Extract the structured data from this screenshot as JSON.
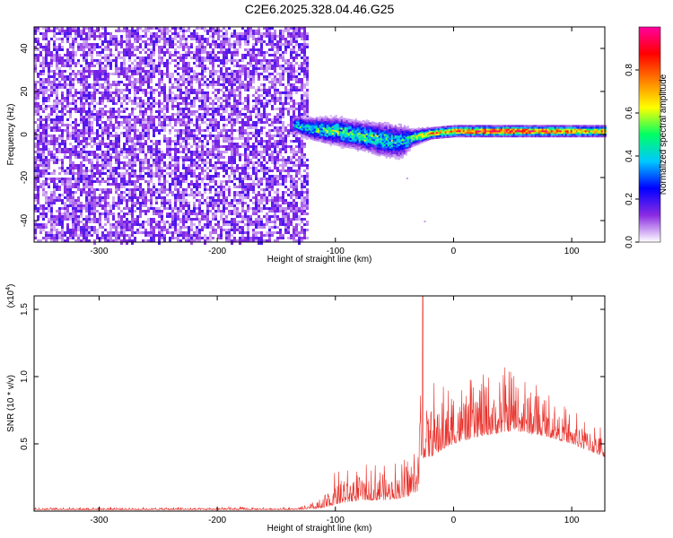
{
  "title": "C2E6.2025.328.04.46.G25",
  "chart_data": [
    {
      "type": "heatmap",
      "xlabel": "Height of straight line (km)",
      "ylabel": "Frequency (Hz)",
      "xlim": [
        -355,
        128
      ],
      "ylim": [
        -50,
        50
      ],
      "x_ticks": [
        -300,
        -200,
        -100,
        0,
        100
      ],
      "x_tick_labels": [
        "-300",
        "-200",
        "-100",
        "0",
        "100"
      ],
      "y_ticks": [
        -40,
        -20,
        0,
        20,
        40
      ],
      "y_tick_labels": [
        "-40",
        "-20",
        "0",
        "20",
        "40"
      ],
      "colorbar": {
        "label": "Normalized spectral amplitude",
        "range": [
          0,
          1
        ],
        "ticks": [
          0,
          0.2,
          0.4,
          0.6,
          0.8
        ],
        "tick_labels": [
          "0.0",
          "0.2",
          "0.4",
          "0.6",
          "0.8"
        ],
        "colormap": [
          "#ffffff",
          "#8a2be2",
          "#0000ff",
          "#00c8ff",
          "#00ff64",
          "#ffff00",
          "#ff8000",
          "#ff0000",
          "#ff00a0"
        ]
      },
      "regions": [
        {
          "x_range": [
            -355,
            -123
          ],
          "freq_range": [
            -50,
            50
          ],
          "amplitude": 0.15,
          "description_label": ""
        },
        {
          "x_range": [
            -135,
            -35
          ],
          "freq_range": [
            -10,
            8
          ],
          "amplitude": 0.45
        },
        {
          "x_range": [
            -35,
            128
          ],
          "freq_range": [
            -1,
            5
          ],
          "amplitude": 0.75
        }
      ],
      "trace": {
        "x": [
          -135,
          -120,
          -100,
          -80,
          -60,
          -45,
          -35,
          -20,
          0,
          20,
          50,
          80,
          110,
          128
        ],
        "center_freq": [
          5,
          3,
          2,
          0,
          -2,
          -3,
          -1,
          1,
          2,
          2,
          2,
          2,
          2,
          2
        ],
        "half_width": [
          3,
          4,
          5,
          5,
          6,
          6,
          3,
          2,
          2,
          2,
          2,
          2,
          2,
          2
        ],
        "peak_amp": [
          0.4,
          0.45,
          0.5,
          0.5,
          0.45,
          0.4,
          0.55,
          0.75,
          0.8,
          0.9,
          0.9,
          0.85,
          0.8,
          0.8
        ]
      }
    },
    {
      "type": "line",
      "xlabel": "Height of straight line (km)",
      "ylabel": "SNR (10 * v/v)",
      "y_multiplier_label": "(x10",
      "y_multiplier_exp": "4",
      "xlim": [
        -355,
        128
      ],
      "ylim": [
        0.0,
        1.6
      ],
      "x_ticks": [
        -300,
        -200,
        -100,
        0,
        100
      ],
      "x_tick_labels": [
        "-300",
        "-200",
        "-100",
        "0",
        "100"
      ],
      "y_ticks": [
        0.5,
        1.0,
        1.5
      ],
      "y_tick_labels": [
        "0.5",
        "1.0",
        "1.5"
      ],
      "color": "#e8302a",
      "envelope": {
        "x": [
          -355,
          -130,
          -110,
          -100,
          -80,
          -60,
          -40,
          -30,
          -27,
          -25,
          -20,
          -10,
          0,
          20,
          50,
          80,
          100,
          128
        ],
        "base": [
          0.01,
          0.01,
          0.02,
          0.05,
          0.08,
          0.08,
          0.1,
          0.15,
          0.35,
          0.4,
          0.4,
          0.45,
          0.5,
          0.55,
          0.6,
          0.55,
          0.5,
          0.4
        ],
        "amp": [
          0.02,
          0.02,
          0.08,
          0.25,
          0.25,
          0.3,
          0.3,
          0.4,
          1.2,
          0.6,
          0.6,
          0.5,
          0.45,
          0.45,
          0.5,
          0.35,
          0.25,
          0.25
        ]
      }
    }
  ]
}
